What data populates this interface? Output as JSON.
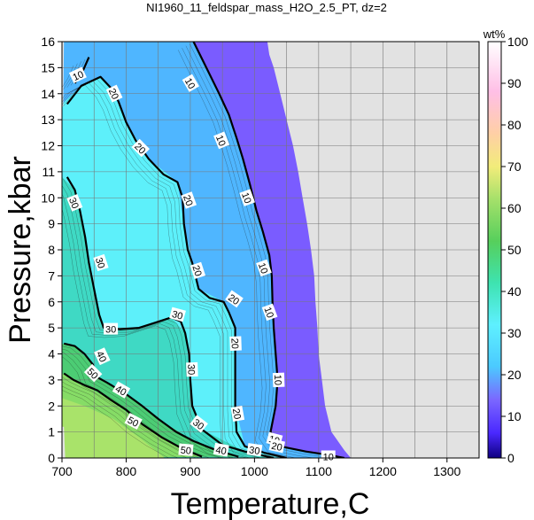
{
  "chart_data": {
    "type": "heatmap",
    "title": "NI1960_11_feldspar_mass_H2O_2.5_PT, dz=2",
    "xlabel": "Temperature,C",
    "ylabel": "Pressure,kbar",
    "xlim": [
      700,
      1350
    ],
    "ylim": [
      0,
      16
    ],
    "x_ticks": [
      700,
      800,
      900,
      1000,
      1100,
      1200,
      1300
    ],
    "y_ticks": [
      0,
      1,
      2,
      3,
      4,
      5,
      6,
      7,
      8,
      9,
      10,
      11,
      12,
      13,
      14,
      15,
      16
    ],
    "grid": true,
    "colorbar": {
      "label": "wt%",
      "range": [
        0,
        100
      ],
      "ticks": [
        0,
        10,
        20,
        30,
        40,
        50,
        60,
        70,
        80,
        90,
        100
      ]
    },
    "background_color": "#e2e2e2",
    "contours": [
      {
        "level": 10,
        "points": [
          [
            720,
            14.4
          ],
          [
            733,
            14.9
          ],
          [
            742,
            15.4
          ]
        ]
      },
      {
        "level": 10,
        "points": [
          [
            905,
            16
          ],
          [
            925,
            15
          ],
          [
            945,
            14
          ],
          [
            960,
            13.2
          ],
          [
            972,
            12.3
          ],
          [
            982,
            11.5
          ],
          [
            993,
            10.5
          ],
          [
            1003,
            9.5
          ],
          [
            1013,
            8.7
          ],
          [
            1023,
            7.8
          ],
          [
            1027,
            7
          ],
          [
            1028,
            6
          ],
          [
            1030,
            5
          ],
          [
            1033,
            4
          ],
          [
            1036,
            3
          ],
          [
            1033,
            2
          ],
          [
            1025,
            1
          ],
          [
            1040,
            0.45
          ],
          [
            1080,
            0.25
          ],
          [
            1120,
            0.1
          ],
          [
            1140,
            0
          ]
        ]
      },
      {
        "level": 20,
        "points": [
          [
            708,
            13.6
          ],
          [
            730,
            14.3
          ],
          [
            760,
            14.65
          ],
          [
            777,
            14.2
          ],
          [
            788,
            13.7
          ],
          [
            800,
            12.9
          ],
          [
            815,
            12.2
          ],
          [
            835,
            11.5
          ],
          [
            858,
            10.9
          ],
          [
            880,
            10.6
          ],
          [
            888,
            10
          ],
          [
            890,
            9
          ],
          [
            896,
            8
          ],
          [
            903,
            7.5
          ],
          [
            908,
            7
          ],
          [
            913,
            6.5
          ],
          [
            930,
            6.15
          ],
          [
            952,
            6
          ],
          [
            960,
            5.6
          ],
          [
            970,
            5
          ],
          [
            970,
            4
          ],
          [
            970,
            3
          ],
          [
            970,
            2
          ],
          [
            972,
            1
          ],
          [
            985,
            0.45
          ],
          [
            1015,
            0.2
          ],
          [
            1050,
            0
          ]
        ]
      },
      {
        "level": 30,
        "points": [
          [
            708,
            10.8
          ],
          [
            720,
            10.3
          ],
          [
            728,
            9.5
          ],
          [
            736,
            8.5
          ],
          [
            742,
            7.5
          ],
          [
            750,
            6.5
          ],
          [
            758,
            5.5
          ],
          [
            765,
            5
          ],
          [
            790,
            4.95
          ],
          [
            820,
            5
          ],
          [
            845,
            5.2
          ],
          [
            870,
            5.4
          ],
          [
            885,
            5.25
          ],
          [
            892,
            4.8
          ],
          [
            898,
            4
          ],
          [
            900,
            3
          ],
          [
            903,
            2
          ],
          [
            918,
            1.1
          ],
          [
            950,
            0.5
          ],
          [
            985,
            0.25
          ],
          [
            1030,
            0
          ]
        ]
      },
      {
        "level": 40,
        "points": [
          [
            703,
            4.4
          ],
          [
            720,
            4.3
          ],
          [
            735,
            4.0
          ],
          [
            748,
            3.6
          ],
          [
            755,
            3.1
          ],
          [
            770,
            2.9
          ],
          [
            800,
            2.45
          ],
          [
            825,
            2.0
          ],
          [
            850,
            1.5
          ],
          [
            878,
            1.0
          ],
          [
            905,
            0.65
          ],
          [
            940,
            0.3
          ],
          [
            975,
            0.05
          ]
        ]
      },
      {
        "level": 50,
        "points": [
          [
            703,
            3.25
          ],
          [
            718,
            3.0
          ],
          [
            735,
            2.8
          ],
          [
            755,
            2.6
          ],
          [
            775,
            2.25
          ],
          [
            800,
            1.85
          ],
          [
            825,
            1.3
          ],
          [
            855,
            0.8
          ],
          [
            888,
            0.35
          ],
          [
            918,
            0.05
          ]
        ]
      }
    ],
    "contour_labels": [
      {
        "text": "10",
        "x": 725,
        "y": 14.7,
        "angle": -25
      },
      {
        "text": "20",
        "x": 781,
        "y": 14.0,
        "angle": 65
      },
      {
        "text": "10",
        "x": 900,
        "y": 14.4,
        "angle": 60
      },
      {
        "text": "20",
        "x": 822,
        "y": 11.9,
        "angle": 45
      },
      {
        "text": "10",
        "x": 948,
        "y": 12.2,
        "angle": 68
      },
      {
        "text": "20",
        "x": 897,
        "y": 9.9,
        "angle": 70
      },
      {
        "text": "30",
        "x": 719,
        "y": 9.8,
        "angle": 68
      },
      {
        "text": "10",
        "x": 988,
        "y": 10.0,
        "angle": 70
      },
      {
        "text": "20",
        "x": 911,
        "y": 7.2,
        "angle": 72
      },
      {
        "text": "10",
        "x": 1014,
        "y": 7.3,
        "angle": 70
      },
      {
        "text": "30",
        "x": 760,
        "y": 7.5,
        "angle": 72
      },
      {
        "text": "20",
        "x": 968,
        "y": 6.1,
        "angle": 35
      },
      {
        "text": "30",
        "x": 880,
        "y": 5.5,
        "angle": 15
      },
      {
        "text": "30",
        "x": 776,
        "y": 4.95,
        "angle": 0
      },
      {
        "text": "10",
        "x": 1023,
        "y": 5.6,
        "angle": 70
      },
      {
        "text": "40",
        "x": 762,
        "y": 3.9,
        "angle": 65
      },
      {
        "text": "20",
        "x": 970,
        "y": 4.4,
        "angle": 88
      },
      {
        "text": "50",
        "x": 748,
        "y": 3.25,
        "angle": 45
      },
      {
        "text": "30",
        "x": 902,
        "y": 3.4,
        "angle": 88
      },
      {
        "text": "40",
        "x": 792,
        "y": 2.6,
        "angle": 30
      },
      {
        "text": "10",
        "x": 1037,
        "y": 3.0,
        "angle": 88
      },
      {
        "text": "20",
        "x": 973,
        "y": 1.7,
        "angle": 80
      },
      {
        "text": "50",
        "x": 811,
        "y": 1.4,
        "angle": 28
      },
      {
        "text": "30",
        "x": 913,
        "y": 1.3,
        "angle": 38
      },
      {
        "text": "10",
        "x": 1031,
        "y": 0.7,
        "angle": 15
      },
      {
        "text": "40",
        "x": 948,
        "y": 0.3,
        "angle": 10
      },
      {
        "text": "50",
        "x": 893,
        "y": 0.3,
        "angle": 5
      },
      {
        "text": "30",
        "x": 1000,
        "y": 0.3,
        "angle": 8
      },
      {
        "text": "20",
        "x": 1035,
        "y": 0.45,
        "angle": 12
      },
      {
        "text": "10",
        "x": 1115,
        "y": 0.05,
        "angle": 0
      }
    ]
  }
}
